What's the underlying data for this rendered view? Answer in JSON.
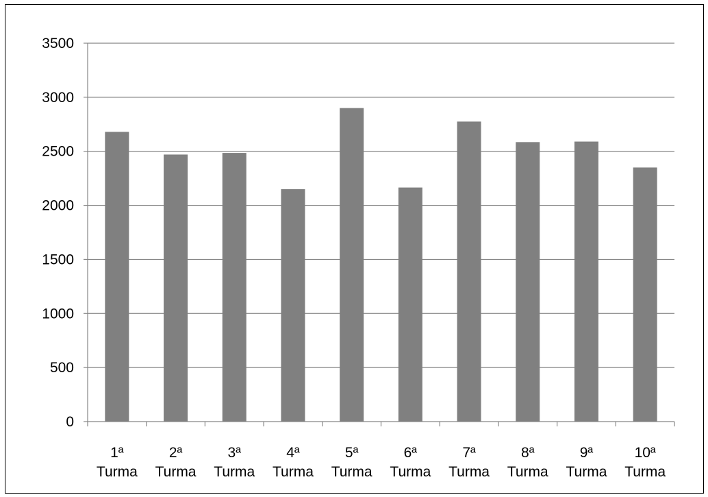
{
  "chart_data": {
    "type": "bar",
    "title": "",
    "xlabel": "",
    "ylabel": "",
    "categories": [
      [
        "1ª",
        "Turma"
      ],
      [
        "2ª",
        "Turma"
      ],
      [
        "3ª",
        "Turma"
      ],
      [
        "4ª",
        "Turma"
      ],
      [
        "5ª",
        "Turma"
      ],
      [
        "6ª",
        "Turma"
      ],
      [
        "7ª",
        "Turma"
      ],
      [
        "8ª",
        "Turma"
      ],
      [
        "9ª",
        "Turma"
      ],
      [
        "10ª",
        "Turma"
      ]
    ],
    "values": [
      2680,
      2470,
      2485,
      2150,
      2900,
      2165,
      2775,
      2585,
      2590,
      2350
    ],
    "ylim": [
      0,
      3500
    ],
    "yticks": [
      0,
      500,
      1000,
      1500,
      2000,
      2500,
      3000,
      3500
    ],
    "grid": true,
    "legend": "none",
    "colors": {
      "bar": "#808080",
      "grid": "#868686",
      "text": "#000000",
      "border": "#000000"
    }
  }
}
